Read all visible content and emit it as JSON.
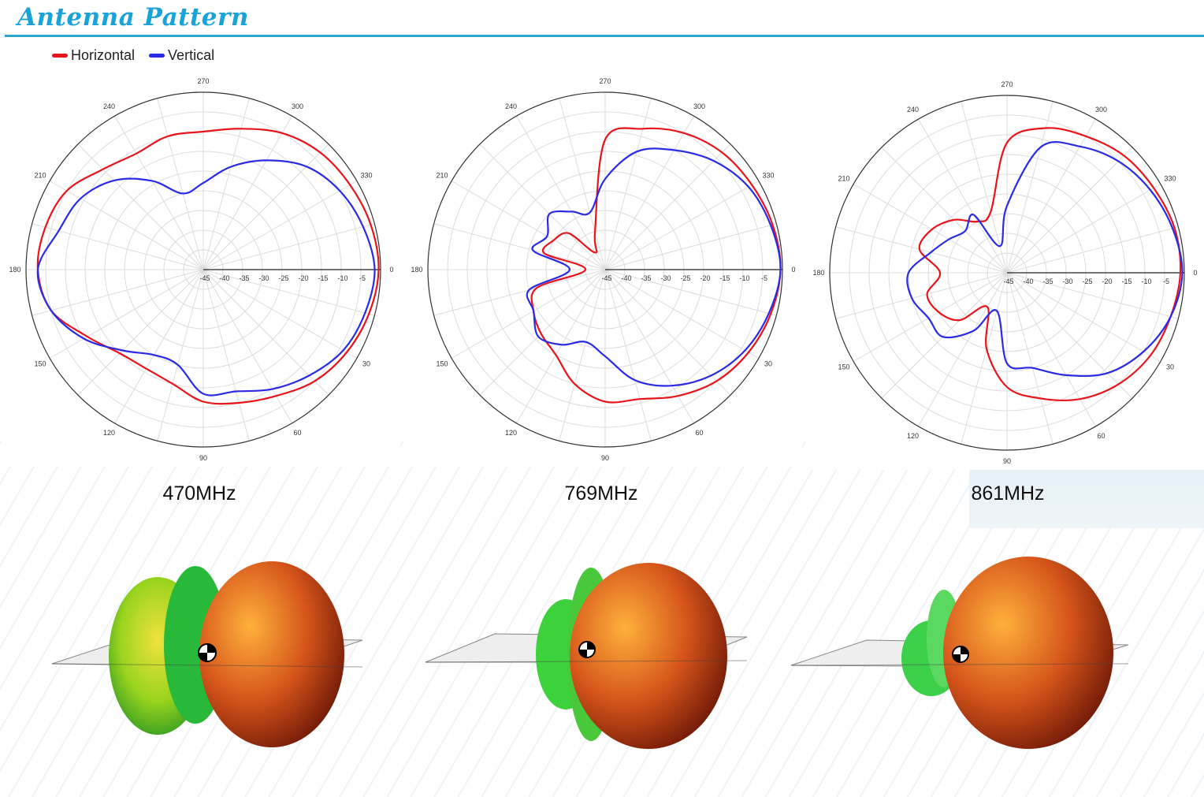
{
  "header": {
    "title": "Antenna Pattern"
  },
  "legend": {
    "items": [
      {
        "label": "Horizontal",
        "color": "#e8141b"
      },
      {
        "label": "Vertical",
        "color": "#2b2be6"
      }
    ]
  },
  "chart_data": [
    {
      "type": "polar",
      "title": "470MHz",
      "angle_labels": [
        "0",
        "30",
        "60",
        "90",
        "120",
        "150",
        "180",
        "210",
        "240",
        "270",
        "300",
        "330"
      ],
      "radial_labels": [
        "-45",
        "-40",
        "-35",
        "-30",
        "-25",
        "-20",
        "-15",
        "-10",
        "-5"
      ],
      "rlim": [
        -45,
        0
      ],
      "grid": true,
      "series": [
        {
          "name": "Horizontal",
          "angles_deg": [
            0,
            15,
            30,
            45,
            60,
            75,
            90,
            105,
            120,
            135,
            150,
            165,
            180,
            195,
            210,
            225,
            240,
            255,
            270,
            285,
            300,
            315,
            330,
            345
          ],
          "values_db": [
            -0.5,
            -1.5,
            -3,
            -5,
            -8,
            -10,
            -11.5,
            -15,
            -16,
            -15,
            -11,
            -5,
            -3,
            -3.5,
            -5,
            -9,
            -11,
            -10,
            -10,
            -8,
            -5,
            -3,
            -2,
            -1
          ]
        },
        {
          "name": "Vertical",
          "angles_deg": [
            0,
            15,
            30,
            45,
            60,
            75,
            90,
            105,
            120,
            135,
            150,
            165,
            180,
            195,
            210,
            225,
            240,
            255,
            270,
            285,
            300,
            315,
            330,
            345
          ],
          "values_db": [
            -1.5,
            -2.5,
            -4,
            -7,
            -10,
            -13,
            -13.5,
            -20,
            -20,
            -16,
            -10,
            -5,
            -3,
            -7,
            -9,
            -13,
            -19,
            -25,
            -23,
            -18,
            -13,
            -8,
            -5,
            -3
          ]
        }
      ]
    },
    {
      "type": "polar",
      "title": "769MHz",
      "angle_labels": [
        "0",
        "30",
        "60",
        "90",
        "120",
        "150",
        "180",
        "210",
        "240",
        "270",
        "300",
        "330"
      ],
      "radial_labels": [
        "-45",
        "-40",
        "-35",
        "-30",
        "-25",
        "-20",
        "-15",
        "-10",
        "-5"
      ],
      "rlim": [
        -45,
        0
      ],
      "grid": true,
      "series": [
        {
          "name": "Horizontal",
          "angles_deg": [
            0,
            15,
            30,
            45,
            60,
            75,
            90,
            105,
            120,
            135,
            150,
            165,
            180,
            195,
            210,
            225,
            240,
            255,
            270,
            285,
            300,
            315,
            330,
            345
          ],
          "values_db": [
            -0.5,
            -1.5,
            -3,
            -5,
            -8,
            -11,
            -11.5,
            -15,
            -20,
            -22,
            -24,
            -27,
            -40,
            -29,
            -30,
            -32,
            -40,
            -35,
            -12,
            -8,
            -5,
            -3,
            -2,
            -1
          ]
        },
        {
          "name": "Vertical",
          "angles_deg": [
            0,
            15,
            30,
            45,
            60,
            75,
            90,
            105,
            120,
            135,
            150,
            165,
            180,
            195,
            210,
            225,
            240,
            255,
            270,
            285,
            300,
            315,
            330,
            345
          ],
          "values_db": [
            -0.5,
            -2,
            -4,
            -7,
            -11,
            -16,
            -23,
            -26,
            -23,
            -21,
            -24,
            -25,
            -36,
            -26,
            -28,
            -25,
            -28,
            -30,
            -22,
            -14,
            -10,
            -6,
            -3,
            -1.5
          ]
        }
      ]
    },
    {
      "type": "polar",
      "title": "861MHz",
      "angle_labels": [
        "0",
        "30",
        "60",
        "90",
        "120",
        "150",
        "180",
        "210",
        "240",
        "270",
        "300",
        "330"
      ],
      "radial_labels": [
        "-45",
        "-40",
        "-35",
        "-30",
        "-25",
        "-20",
        "-15",
        "-10",
        "-5"
      ],
      "rlim": [
        -45,
        0
      ],
      "grid": true,
      "series": [
        {
          "name": "Horizontal",
          "angles_deg": [
            0,
            15,
            30,
            45,
            60,
            75,
            90,
            105,
            120,
            135,
            150,
            165,
            180,
            195,
            210,
            225,
            240,
            255,
            270,
            285,
            300,
            315,
            330,
            345
          ],
          "values_db": [
            -1,
            -2,
            -3,
            -5,
            -8,
            -12,
            -16,
            -25,
            -35,
            -28,
            -25,
            -24,
            -28,
            -22,
            -23,
            -26,
            -30,
            -29,
            -12,
            -7,
            -5,
            -3,
            -2,
            -1
          ]
        },
        {
          "name": "Vertical",
          "angles_deg": [
            0,
            15,
            30,
            45,
            60,
            75,
            90,
            105,
            120,
            135,
            150,
            165,
            180,
            195,
            210,
            225,
            240,
            255,
            270,
            285,
            300,
            315,
            330,
            345
          ],
          "values_db": [
            -0.5,
            -2,
            -5,
            -9,
            -15,
            -20,
            -22,
            -35,
            -28,
            -22,
            -22,
            -20,
            -20,
            -25,
            -28,
            -30,
            -28,
            -38,
            -28,
            -12,
            -8,
            -5,
            -3,
            -1.5
          ]
        }
      ]
    }
  ]
}
